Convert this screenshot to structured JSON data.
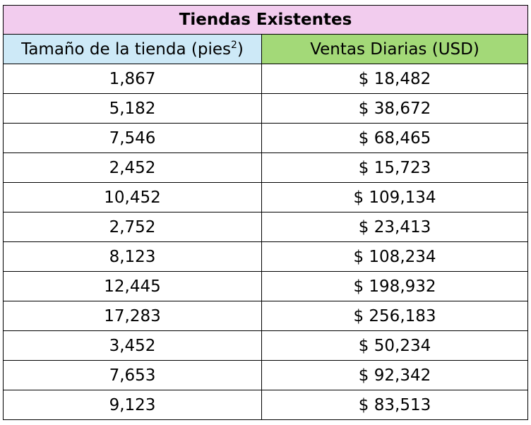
{
  "table": {
    "title": "Tiendas Existentes",
    "colors": {
      "title_bg": "#f2ccee",
      "col1_bg": "#cde9f7",
      "col2_bg": "#a3d978"
    },
    "headers": {
      "col1_main": "Tamaño de la tienda (pies",
      "col1_sup": "2",
      "col1_close": ")",
      "col2": "Ventas Diarias (USD)"
    },
    "rows": [
      {
        "size": "1,867",
        "sales": "$ 18,482"
      },
      {
        "size": "5,182",
        "sales": "$ 38,672"
      },
      {
        "size": "7,546",
        "sales": "$ 68,465"
      },
      {
        "size": "2,452",
        "sales": "$ 15,723"
      },
      {
        "size": "10,452",
        "sales": "$ 109,134"
      },
      {
        "size": "2,752",
        "sales": "$ 23,413"
      },
      {
        "size": "8,123",
        "sales": "$ 108,234"
      },
      {
        "size": "12,445",
        "sales": "$ 198,932"
      },
      {
        "size": "17,283",
        "sales": "$ 256,183"
      },
      {
        "size": "3,452",
        "sales": "$ 50,234"
      },
      {
        "size": "7,653",
        "sales": "$ 92,342"
      },
      {
        "size": "9,123",
        "sales": "$ 83,513"
      }
    ]
  }
}
